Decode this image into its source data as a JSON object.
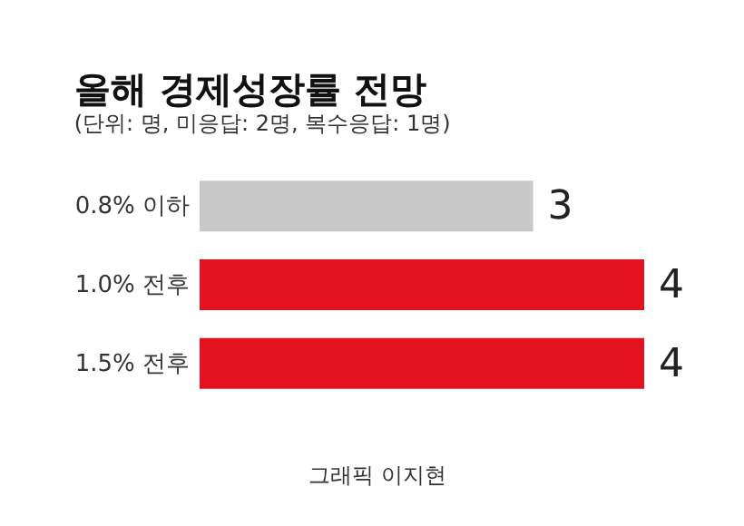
{
  "chart_data": {
    "type": "bar",
    "orientation": "horizontal",
    "title": "올해 경제성장률 전망",
    "subtitle": "(단위: 명, 미응답: 2명, 복수응답: 1명)",
    "categories": [
      "0.8% 이하",
      "1.0% 전후",
      "1.5% 전후"
    ],
    "values": [
      3,
      4,
      4
    ],
    "colors": [
      "#c8c8c8",
      "#e3121e",
      "#e3121e"
    ],
    "data_labels": true,
    "annotations": [
      "그래픽 이지현"
    ]
  }
}
